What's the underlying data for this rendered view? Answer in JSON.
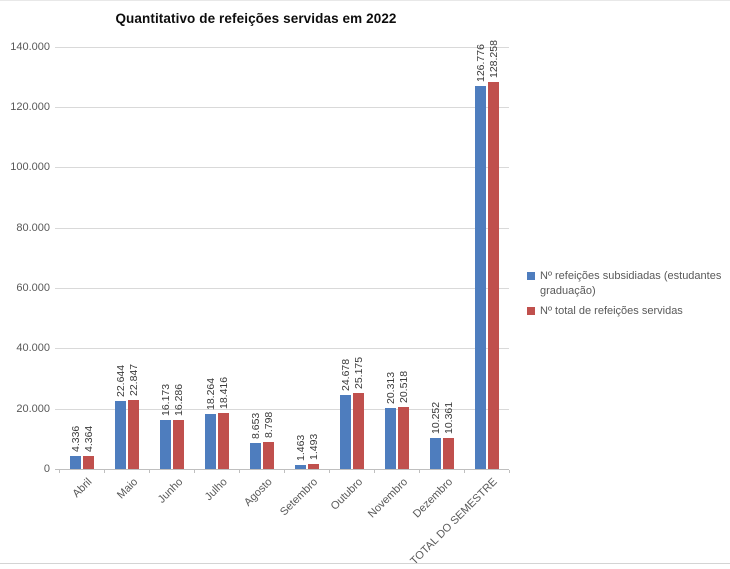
{
  "title": "Quantitativo de refeições servidas em 2022",
  "chart_data": {
    "type": "bar",
    "title": "Quantitativo de refeições servidas em 2022",
    "categories": [
      "Abril",
      "Maio",
      "Junho",
      "Julho",
      "Agosto",
      "Setembro",
      "Outubro",
      "Novembro",
      "Dezembro",
      "TOTAL DO SEMESTRE"
    ],
    "series": [
      {
        "name": "Nº refeições subsidiadas (estudantes graduação)",
        "color": "#4e7dbe",
        "values": [
          4336,
          22644,
          16173,
          18264,
          8653,
          1463,
          24678,
          20313,
          10252,
          126776
        ],
        "labels": [
          "4.336",
          "22.644",
          "16.173",
          "18.264",
          "8.653",
          "1.463",
          "24.678",
          "20.313",
          "10.252",
          "126.776"
        ]
      },
      {
        "name": "Nº total de refeições servidas",
        "color": "#c0504d",
        "values": [
          4364,
          22847,
          16286,
          18416,
          8798,
          1493,
          25175,
          20518,
          10361,
          128258
        ],
        "labels": [
          "4.364",
          "22.847",
          "16.286",
          "18.416",
          "8.798",
          "1.493",
          "25.175",
          "20.518",
          "10.361",
          "128.258"
        ]
      }
    ],
    "y_axis": {
      "tick_labels": [
        "0",
        "20.000",
        "40.000",
        "60.000",
        "80.000",
        "100.000",
        "120.000",
        "140.000"
      ],
      "tick_values": [
        0,
        20000,
        40000,
        60000,
        80000,
        100000,
        120000,
        140000
      ],
      "min": 0,
      "max": 140000
    },
    "grid": true,
    "legend_position": "right",
    "colors": {
      "series1": "#4e7dbe",
      "series2": "#c0504d",
      "gridline": "#d9d9d9",
      "axis": "#bfbfbf",
      "axis_text": "#595959",
      "data_label_text": "#3a3a3a",
      "title_text": "#0d0d0d"
    }
  }
}
